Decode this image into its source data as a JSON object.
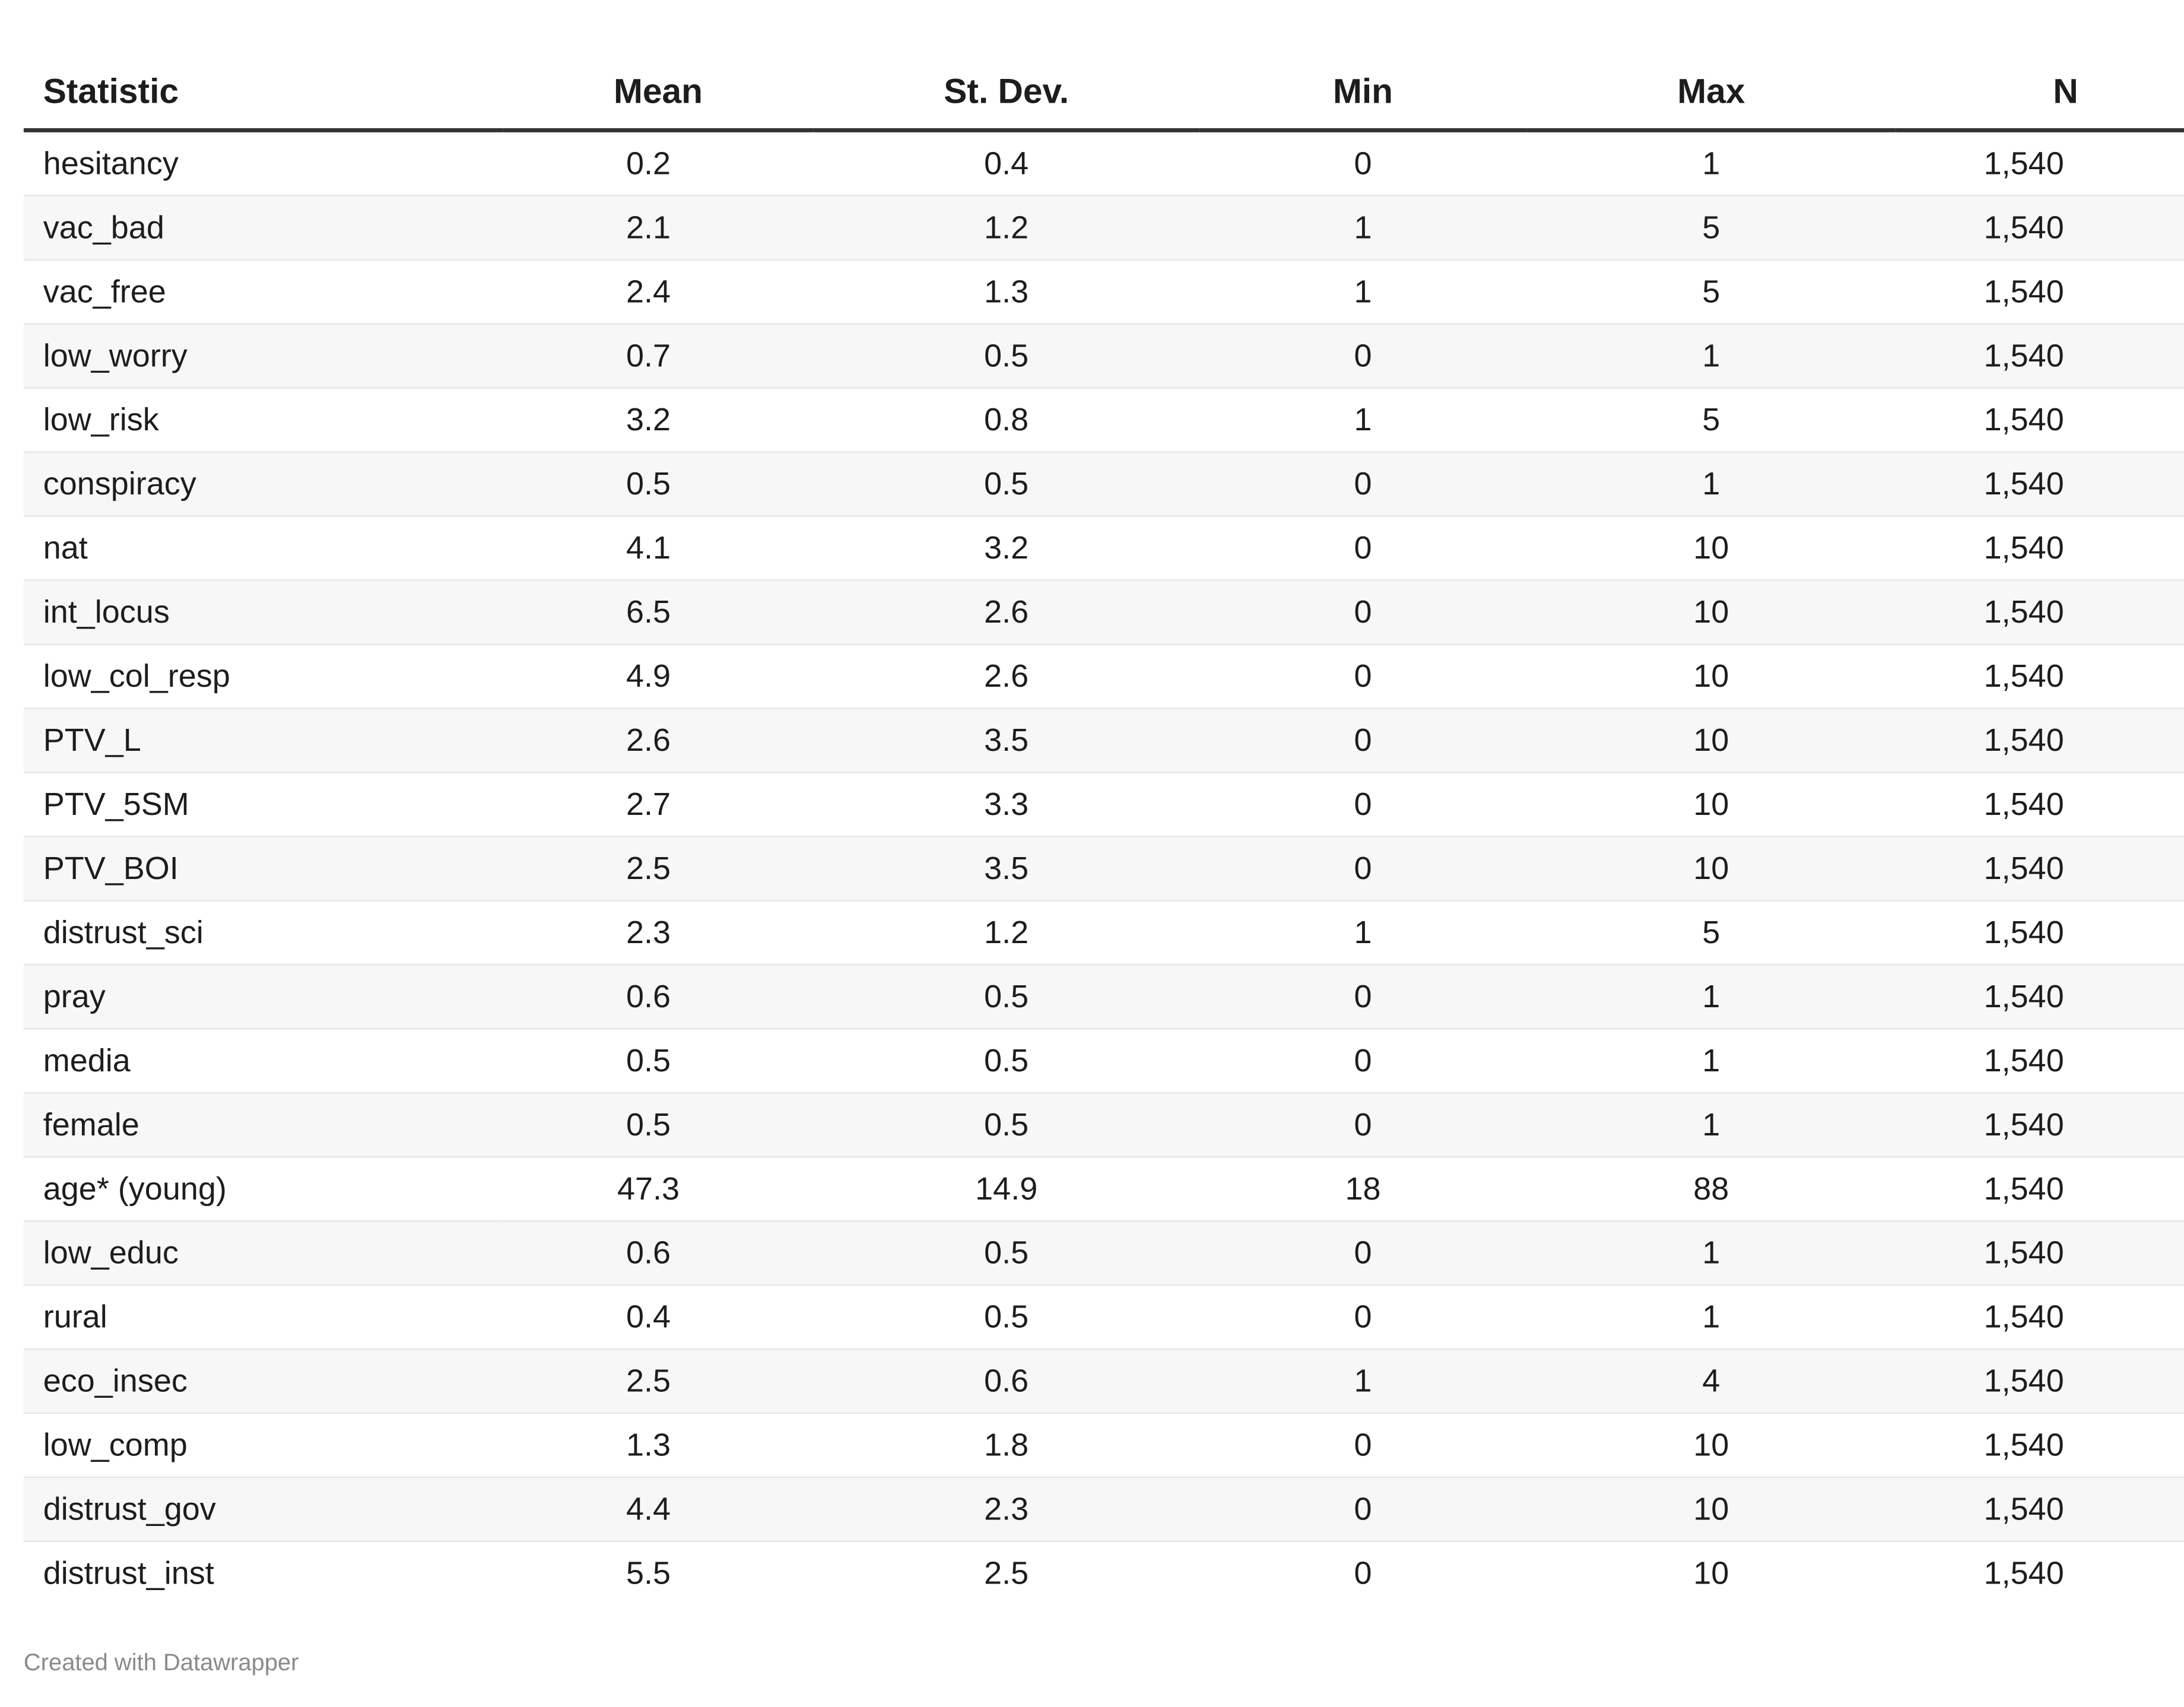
{
  "chart_data": {
    "type": "table",
    "columns": [
      "Statistic",
      "Mean",
      "St. Dev.",
      "Min",
      "Max",
      "N"
    ],
    "rows": [
      [
        "hesitancy",
        "0.2",
        "0.4",
        "0",
        "1",
        "1,540"
      ],
      [
        "vac_bad",
        "2.1",
        "1.2",
        "1",
        "5",
        "1,540"
      ],
      [
        "vac_free",
        "2.4",
        "1.3",
        "1",
        "5",
        "1,540"
      ],
      [
        "low_worry",
        "0.7",
        "0.5",
        "0",
        "1",
        "1,540"
      ],
      [
        "low_risk",
        "3.2",
        "0.8",
        "1",
        "5",
        "1,540"
      ],
      [
        "conspiracy",
        "0.5",
        "0.5",
        "0",
        "1",
        "1,540"
      ],
      [
        "nat",
        "4.1",
        "3.2",
        "0",
        "10",
        "1,540"
      ],
      [
        "int_locus",
        "6.5",
        "2.6",
        "0",
        "10",
        "1,540"
      ],
      [
        "low_col_resp",
        "4.9",
        "2.6",
        "0",
        "10",
        "1,540"
      ],
      [
        "PTV_L",
        "2.6",
        "3.5",
        "0",
        "10",
        "1,540"
      ],
      [
        "PTV_5SM",
        "2.7",
        "3.3",
        "0",
        "10",
        "1,540"
      ],
      [
        "PTV_BOI",
        "2.5",
        "3.5",
        "0",
        "10",
        "1,540"
      ],
      [
        "distrust_sci",
        "2.3",
        "1.2",
        "1",
        "5",
        "1,540"
      ],
      [
        "pray",
        "0.6",
        "0.5",
        "0",
        "1",
        "1,540"
      ],
      [
        "media",
        "0.5",
        "0.5",
        "0",
        "1",
        "1,540"
      ],
      [
        "female",
        "0.5",
        "0.5",
        "0",
        "1",
        "1,540"
      ],
      [
        "age* (young)",
        "47.3",
        "14.9",
        "18",
        "88",
        "1,540"
      ],
      [
        "low_educ",
        "0.6",
        "0.5",
        "0",
        "1",
        "1,540"
      ],
      [
        "rural",
        "0.4",
        "0.5",
        "0",
        "1",
        "1,540"
      ],
      [
        "eco_insec",
        "2.5",
        "0.6",
        "1",
        "4",
        "1,540"
      ],
      [
        "low_comp",
        "1.3",
        "1.8",
        "0",
        "10",
        "1,540"
      ],
      [
        "distrust_gov",
        "4.4",
        "2.3",
        "0",
        "10",
        "1,540"
      ],
      [
        "distrust_inst",
        "5.5",
        "2.5",
        "0",
        "10",
        "1,540"
      ]
    ]
  },
  "footer": {
    "credit": "Created with Datawrapper"
  },
  "colors": {
    "text": "#1d1d1d",
    "header_rule": "#333333",
    "stripe": "#f7f7f7",
    "row_rule": "#e6e6e6",
    "credit": "#8a8a8a"
  }
}
